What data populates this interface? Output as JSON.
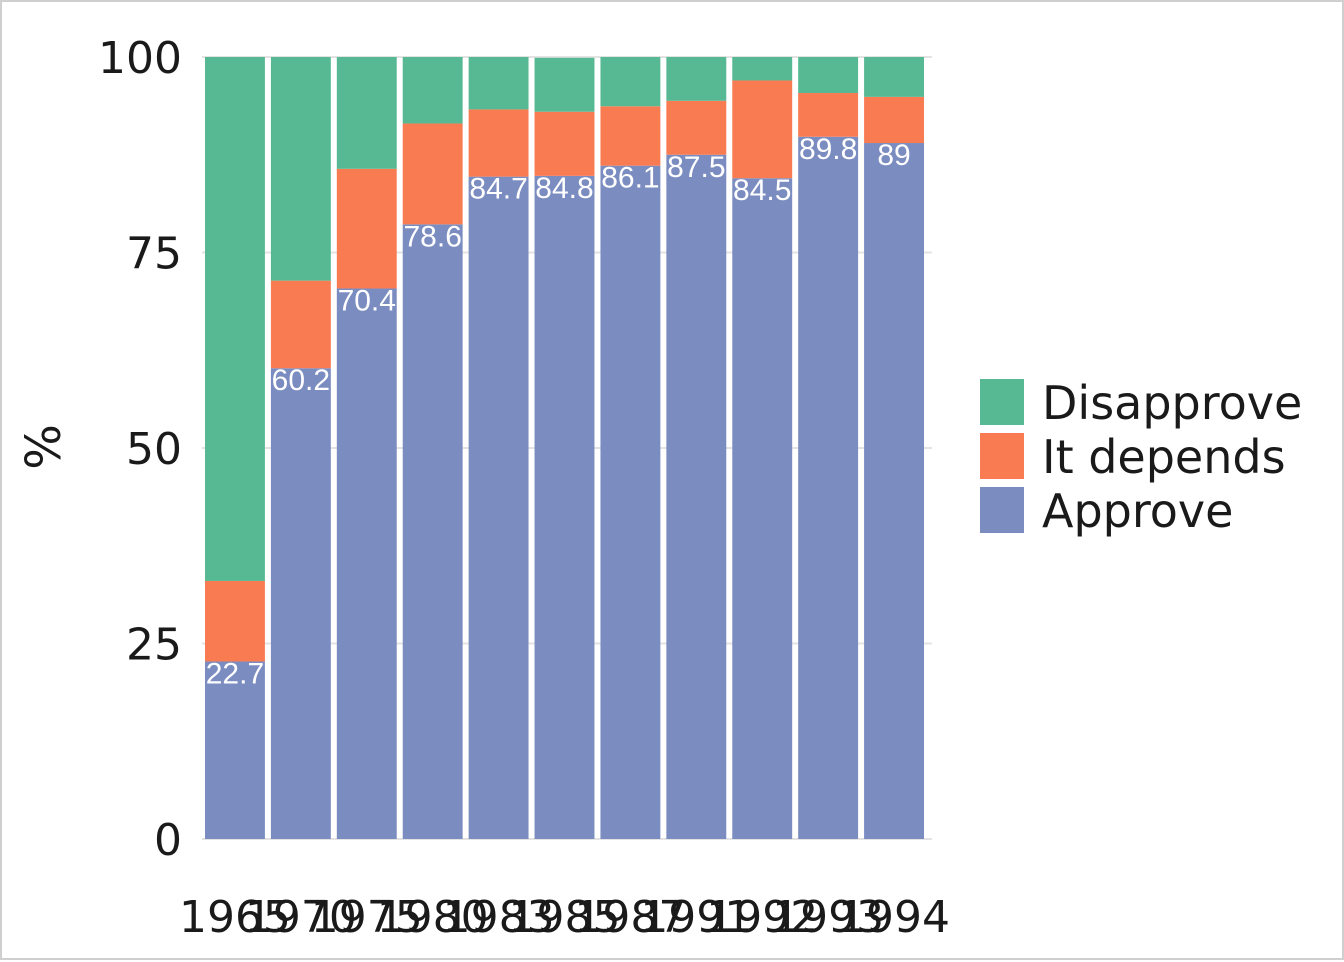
{
  "chart_data": {
    "type": "bar",
    "stacked": true,
    "categories": [
      "1965",
      "1970",
      "1975",
      "1980",
      "1983",
      "1985",
      "1987",
      "1991",
      "1992",
      "1993",
      "1994"
    ],
    "series": [
      {
        "name": "Approve",
        "color": "#7b8cc0",
        "values": [
          22.7,
          60.2,
          70.4,
          78.6,
          84.7,
          84.8,
          86.1,
          87.5,
          84.5,
          89.8,
          89
        ]
      },
      {
        "name": "It depends",
        "color": "#f97b52",
        "values": [
          10.3,
          11.2,
          15.3,
          12.9,
          8.6,
          8.2,
          7.6,
          6.9,
          12.5,
          5.6,
          5.9
        ]
      },
      {
        "name": "Disapprove",
        "color": "#57b993",
        "values": [
          67.0,
          28.6,
          14.3,
          8.5,
          6.7,
          6.9,
          6.3,
          5.6,
          3.0,
          4.6,
          5.1
        ]
      }
    ],
    "data_labels": [
      "22.7",
      "60.2",
      "70.4",
      "78.6",
      "84.7",
      "84.8",
      "86.1",
      "87.5",
      "84.5",
      "89.8",
      "89"
    ],
    "yticks": [
      "0",
      "25",
      "50",
      "75",
      "100"
    ],
    "ylim": [
      0,
      100
    ],
    "ylabel": "%",
    "xlabel": "",
    "legend": {
      "placement": "right",
      "items": [
        "Disapprove",
        "It depends",
        "Approve"
      ]
    },
    "grid": true
  }
}
